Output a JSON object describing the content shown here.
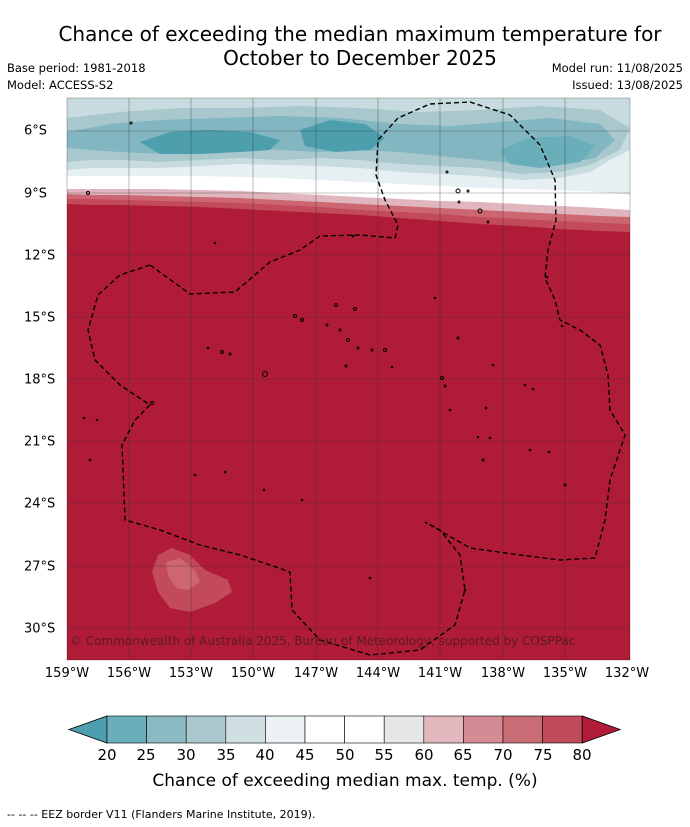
{
  "title": {
    "line1": "Chance of exceeding the median maximum temperature for",
    "line2": "October to December 2025"
  },
  "meta": {
    "base_period": "Base period: 1981-2018",
    "model": "Model: ACCESS-S2",
    "model_run": "Model run: 11/08/2025",
    "issued": "Issued: 13/08/2025"
  },
  "map": {
    "x_tick_labels": [
      "159°W",
      "156°W",
      "153°W",
      "150°W",
      "147°W",
      "144°W",
      "141°W",
      "138°W",
      "135°W",
      "132°W"
    ],
    "y_tick_labels": [
      "6°S",
      "9°S",
      "12°S",
      "15°S",
      "18°S",
      "21°S",
      "24°S",
      "27°S",
      "30°S"
    ],
    "copyright": "© Commonwealth of Australia 2025, Bureau of Meteorology, supported by COSPPac",
    "dominant_category": "80",
    "colors": {
      "above_80": "#b01c38",
      "75_80": "#c24a5a",
      "70_75": "#cc6670",
      "60_65": "#e0b5bd",
      "neutral": "#ffffff",
      "35_40": "#c8dce0",
      "30_35": "#a8c8ce",
      "25_30": "#82b6c0",
      "below_25": "#4e9fae"
    }
  },
  "colorbar": {
    "labels": [
      "20",
      "25",
      "30",
      "35",
      "40",
      "45",
      "50",
      "55",
      "60",
      "65",
      "70",
      "75",
      "80"
    ],
    "colors": [
      "#4d9fae",
      "#6aaeb9",
      "#8bbac3",
      "#aac8ce",
      "#cfdfe2",
      "#ecf1f3",
      "#ffffff",
      "#ffffff",
      "#e7e7e7",
      "#e2b8be",
      "#d48b94",
      "#c86c76",
      "#be4a5a",
      "#b01c38"
    ],
    "title": "Chance of exceeding median max. temp. (%)"
  },
  "footnote": "--  --  -- EEZ border V11 (Flanders Marine Institute, 2019)."
}
